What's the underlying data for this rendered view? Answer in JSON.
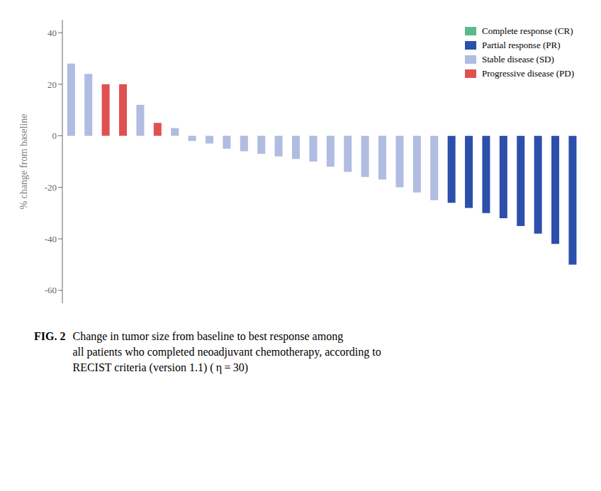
{
  "chart_data": {
    "type": "bar",
    "categories": [
      null,
      null,
      null,
      null,
      null,
      null,
      null,
      null,
      null,
      null,
      null,
      null,
      null,
      null,
      null,
      null,
      null,
      null,
      null,
      null,
      null,
      null,
      null,
      null,
      null,
      null,
      null,
      null,
      null,
      null
    ],
    "series": [
      {
        "name": "Complete response (CR)",
        "color": "#5cba8a",
        "values": [
          null,
          null,
          null,
          null,
          null,
          null,
          null,
          null,
          null,
          null,
          null,
          null,
          null,
          null,
          null,
          null,
          null,
          null,
          null,
          null,
          null,
          null,
          null,
          null,
          null,
          null,
          null,
          null,
          null,
          null
        ]
      },
      {
        "name": "Partial response (PR)",
        "color": "#2b4faa",
        "values": [
          null,
          null,
          null,
          null,
          null,
          null,
          null,
          null,
          null,
          null,
          null,
          null,
          null,
          null,
          null,
          null,
          null,
          null,
          null,
          null,
          null,
          null,
          -26,
          -28,
          -30,
          -32,
          -35,
          -38,
          -42,
          -50
        ]
      },
      {
        "name": "Stable disease (SD)",
        "color": "#b0bce0",
        "values": [
          28,
          24,
          null,
          null,
          12,
          null,
          3,
          -2,
          -3,
          -5,
          -6,
          -7,
          -8,
          -9,
          -10,
          -12,
          -14,
          -16,
          -17,
          -20,
          -22,
          -25,
          null,
          null,
          null,
          null,
          null,
          null,
          null,
          null
        ]
      },
      {
        "name": "Progressive disease (PD)",
        "color": "#e05050",
        "values": [
          null,
          null,
          20,
          20,
          null,
          5,
          null,
          null,
          null,
          null,
          null,
          null,
          null,
          null,
          null,
          null,
          null,
          null,
          null,
          null,
          null,
          null,
          null,
          null,
          null,
          null,
          null,
          null,
          null,
          null
        ]
      }
    ],
    "stacked": true,
    "ylabel": "% change from baseline",
    "ylim": [
      -65,
      45
    ],
    "yticks": [
      -60,
      -40,
      -20,
      0,
      20,
      40
    ],
    "legend": "upper right",
    "tick_labels": "y",
    "annotations": [
      "FIG. 2",
      "Change in tumor size from baseline to best response among\nall patients who completed neoadjuvant chemotherapy, according to\nRECIST criteria (version 1.1) ( η = 30)"
    ]
  }
}
